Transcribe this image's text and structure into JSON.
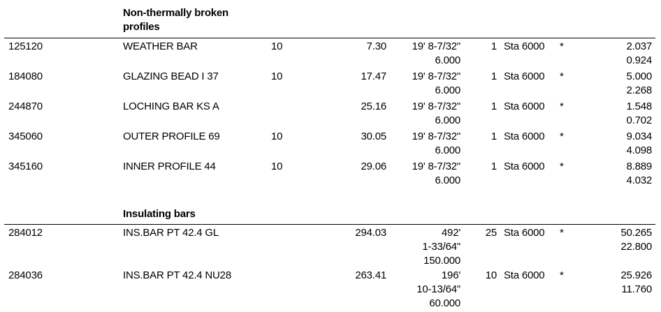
{
  "sections": [
    {
      "title_lines": [
        "Non-thermally broken",
        "profiles"
      ],
      "rows": [
        {
          "code": "125120",
          "name": "WEATHER BAR",
          "qty": "10",
          "price": "7.30",
          "length": [
            "19' 8-7/32\"",
            "6.000"
          ],
          "count": "1",
          "finish": "Sta 6000",
          "mark": "*",
          "weight": [
            "2.037",
            "0.924"
          ]
        },
        {
          "code": "184080",
          "name": "GLAZING BEAD I 37",
          "qty": "10",
          "price": "17.47",
          "length": [
            "19' 8-7/32\"",
            "6.000"
          ],
          "count": "1",
          "finish": "Sta 6000",
          "mark": "*",
          "weight": [
            "5.000",
            "2.268"
          ]
        },
        {
          "code": "244870",
          "name": "LOCHING BAR KS A",
          "qty": "",
          "price": "25.16",
          "length": [
            "19' 8-7/32\"",
            "6.000"
          ],
          "count": "1",
          "finish": "Sta 6000",
          "mark": "*",
          "weight": [
            "1.548",
            "0.702"
          ]
        },
        {
          "code": "345060",
          "name": "OUTER PROFILE 69",
          "qty": "10",
          "price": "30.05",
          "length": [
            "19' 8-7/32\"",
            "6.000"
          ],
          "count": "1",
          "finish": "Sta 6000",
          "mark": "*",
          "weight": [
            "9.034",
            "4.098"
          ]
        },
        {
          "code": "345160",
          "name": "INNER PROFILE 44",
          "qty": "10",
          "price": "29.06",
          "length": [
            "19' 8-7/32\"",
            "6.000"
          ],
          "count": "1",
          "finish": "Sta 6000",
          "mark": "*",
          "weight": [
            "8.889",
            "4.032"
          ]
        }
      ]
    },
    {
      "title_lines": [
        "Insulating bars"
      ],
      "rows": [
        {
          "code": "284012",
          "name": "INS.BAR PT 42.4 GL",
          "qty": "",
          "price": "294.03",
          "length": [
            "492'",
            "1-33/64\"",
            "150.000"
          ],
          "count": "25",
          "finish": "Sta 6000",
          "mark": "*",
          "weight": [
            "50.265",
            "22.800"
          ]
        },
        {
          "code": "284036",
          "name": "INS.BAR PT 42.4 NU28",
          "qty": "",
          "price": "263.41",
          "length": [
            "196'",
            "10-13/64\"",
            "60.000"
          ],
          "count": "10",
          "finish": "Sta 6000",
          "mark": "*",
          "weight": [
            "25.926",
            "11.760"
          ]
        }
      ]
    }
  ]
}
